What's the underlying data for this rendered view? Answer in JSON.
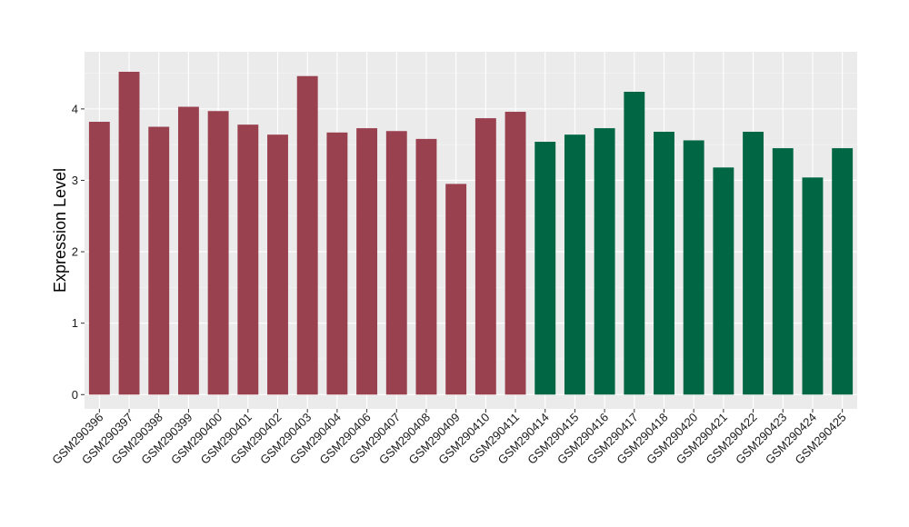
{
  "chart_data": {
    "type": "bar",
    "title": "",
    "xlabel": "",
    "ylabel": "Expression Level",
    "ylim": [
      -0.2,
      4.8
    ],
    "yticks": [
      0,
      1,
      2,
      3,
      4
    ],
    "grid": true,
    "legend": "none",
    "categories": [
      "GSM290396",
      "GSM290397",
      "GSM290398",
      "GSM290399",
      "GSM290400",
      "GSM290401",
      "GSM290402",
      "GSM290403",
      "GSM290404",
      "GSM290406",
      "GSM290407",
      "GSM290408",
      "GSM290409",
      "GSM290410",
      "GSM290411",
      "GSM290414",
      "GSM290415",
      "GSM290416",
      "GSM290417",
      "GSM290418",
      "GSM290420",
      "GSM290421",
      "GSM290422",
      "GSM290423",
      "GSM290424",
      "GSM290425"
    ],
    "values": [
      3.82,
      4.52,
      3.75,
      4.03,
      3.97,
      3.78,
      3.64,
      4.46,
      3.67,
      3.73,
      3.69,
      3.58,
      2.95,
      3.87,
      3.96,
      3.54,
      3.64,
      3.73,
      4.24,
      3.68,
      3.56,
      3.18,
      3.68,
      3.45,
      3.04,
      3.45
    ],
    "groups": [
      1,
      1,
      1,
      1,
      1,
      1,
      1,
      1,
      1,
      1,
      1,
      1,
      1,
      1,
      1,
      2,
      2,
      2,
      2,
      2,
      2,
      2,
      2,
      2,
      2,
      2
    ],
    "colors": {
      "group1": "#9a4150",
      "group2": "#006644",
      "panel": "#ebebeb",
      "grid_major": "#ffffff",
      "grid_minor": "#f5f5f5"
    }
  }
}
